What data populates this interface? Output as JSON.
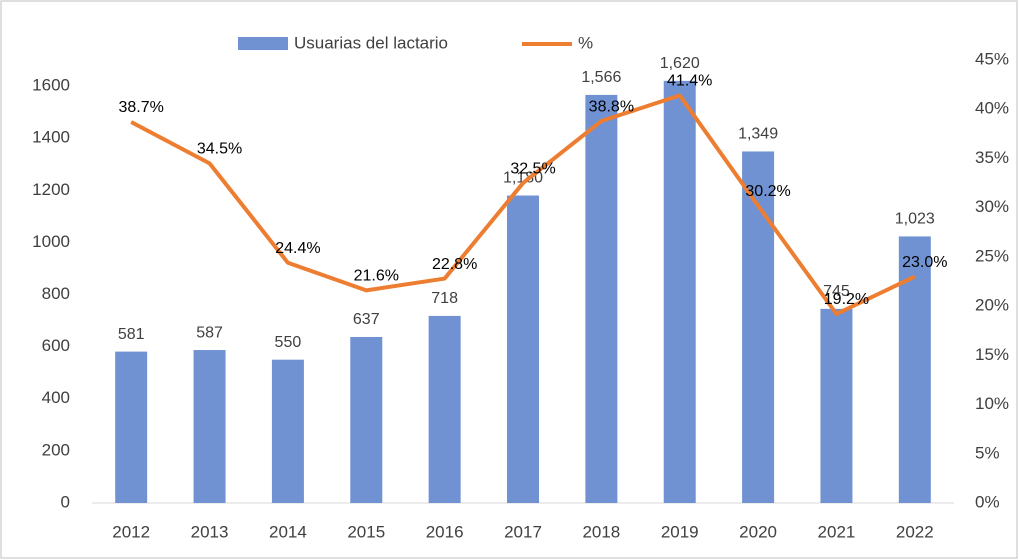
{
  "chart_data": {
    "type": "bar",
    "categories": [
      "2012",
      "2013",
      "2014",
      "2015",
      "2016",
      "2017",
      "2018",
      "2019",
      "2020",
      "2021",
      "2022"
    ],
    "series": [
      {
        "name": "Usuarias del lactario",
        "type": "bar",
        "color": "#7092d3",
        "values": [
          581,
          587,
          550,
          637,
          718,
          1180,
          1566,
          1620,
          1349,
          745,
          1023
        ],
        "value_labels": [
          "581",
          "587",
          "550",
          "637",
          "718",
          "1,180",
          "1,566",
          "1,620",
          "1,349",
          "745",
          "1,023"
        ]
      },
      {
        "name": "%",
        "type": "line",
        "axis": "y2",
        "color": "#ed7d31",
        "values": [
          38.7,
          34.5,
          24.4,
          21.6,
          22.8,
          32.5,
          38.8,
          41.4,
          30.2,
          19.2,
          23.0
        ],
        "value_labels": [
          "38.7%",
          "34.5%",
          "24.4%",
          "21.6%",
          "22.8%",
          "32.5%",
          "38.8%",
          "41.4%",
          "30.2%",
          "19.2%",
          "23.0%"
        ]
      }
    ],
    "ylim": [
      0,
      1700
    ],
    "yticks": [
      0,
      200,
      400,
      600,
      800,
      1000,
      1200,
      1400,
      1600
    ],
    "y2lim": [
      0,
      45
    ],
    "y2ticks": [
      {
        "value": 0,
        "label": "0%"
      },
      {
        "value": 5,
        "label": "5%"
      },
      {
        "value": 10,
        "label": "10%"
      },
      {
        "value": 15,
        "label": "15%"
      },
      {
        "value": 20,
        "label": "20%"
      },
      {
        "value": 25,
        "label": "25%"
      },
      {
        "value": 30,
        "label": "30%"
      },
      {
        "value": 35,
        "label": "35%"
      },
      {
        "value": 40,
        "label": "40%"
      },
      {
        "value": 45,
        "label": "45%"
      }
    ],
    "legend": "top"
  }
}
